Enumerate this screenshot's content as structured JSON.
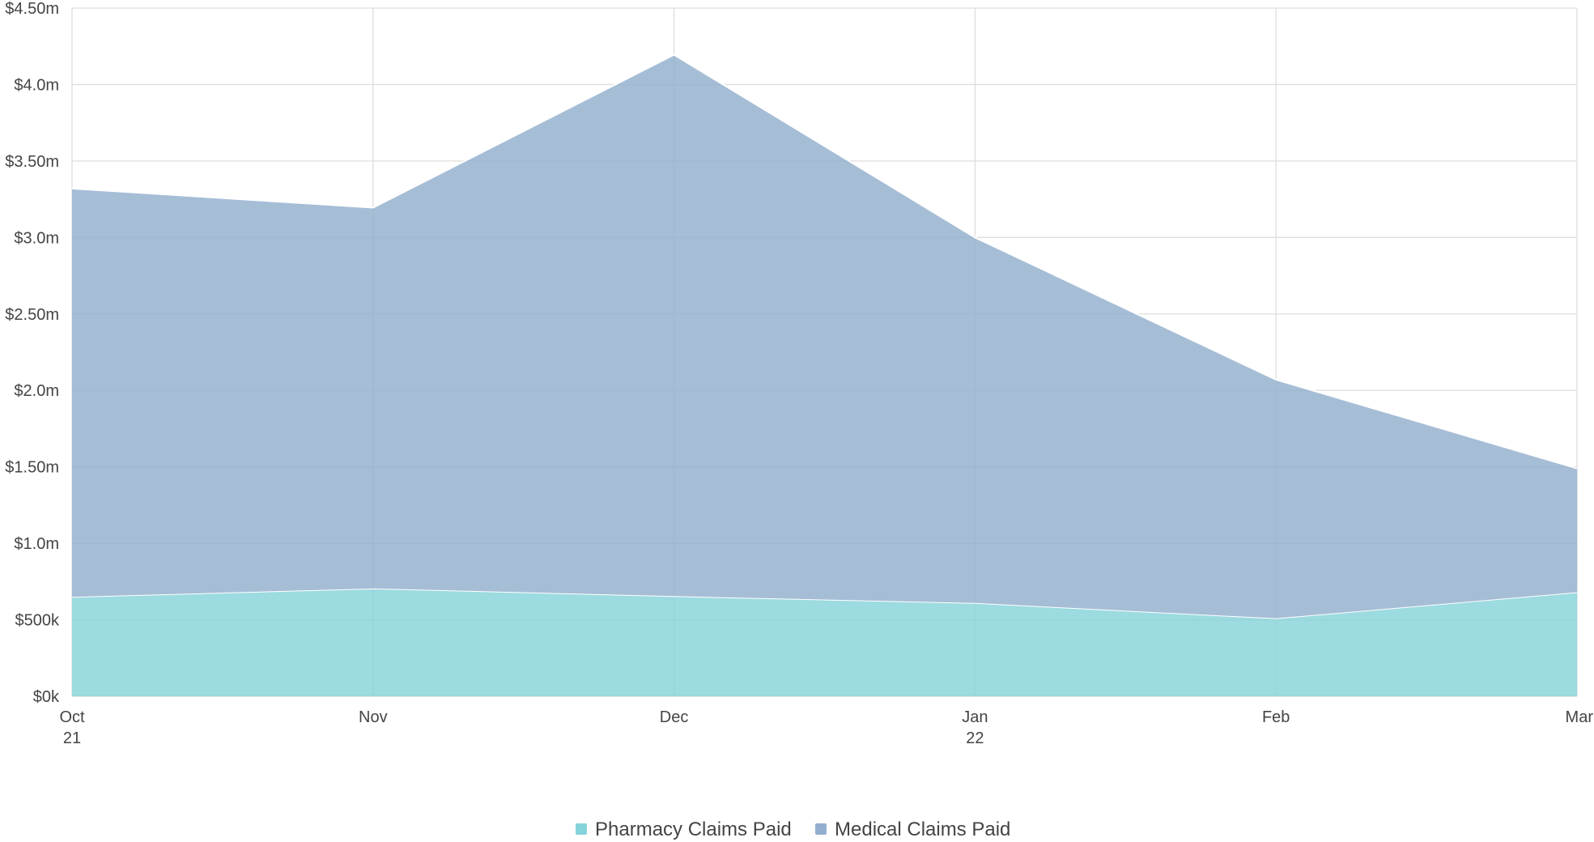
{
  "chart_data": {
    "type": "area",
    "stacked": true,
    "categories": [
      {
        "month": "Oct",
        "year": "21"
      },
      {
        "month": "Nov",
        "year": ""
      },
      {
        "month": "Dec",
        "year": ""
      },
      {
        "month": "Jan",
        "year": "22"
      },
      {
        "month": "Feb",
        "year": ""
      },
      {
        "month": "Mar",
        "year": ""
      }
    ],
    "series": [
      {
        "name": "Pharmacy Claims Paid",
        "color": "#86d3d9",
        "values": [
          650000,
          705000,
          655000,
          610000,
          510000,
          680000
        ]
      },
      {
        "name": "Medical Claims Paid",
        "color": "#93afcd",
        "values": [
          2670000,
          2490000,
          3540000,
          2390000,
          1560000,
          810000
        ]
      }
    ],
    "y_ticks": [
      {
        "value": 0,
        "label": "$0k"
      },
      {
        "value": 500000,
        "label": "$500k"
      },
      {
        "value": 1000000,
        "label": "$1.0m"
      },
      {
        "value": 1500000,
        "label": "$1.50m"
      },
      {
        "value": 2000000,
        "label": "$2.0m"
      },
      {
        "value": 2500000,
        "label": "$2.50m"
      },
      {
        "value": 3000000,
        "label": "$3.0m"
      },
      {
        "value": 3500000,
        "label": "$3.50m"
      },
      {
        "value": 4000000,
        "label": "$4.0m"
      },
      {
        "value": 4500000,
        "label": "$4.50m"
      }
    ],
    "ylim": [
      0,
      4500000
    ],
    "grid": true,
    "legend_position": "bottom-center",
    "title": "",
    "xlabel": "",
    "ylabel": ""
  }
}
